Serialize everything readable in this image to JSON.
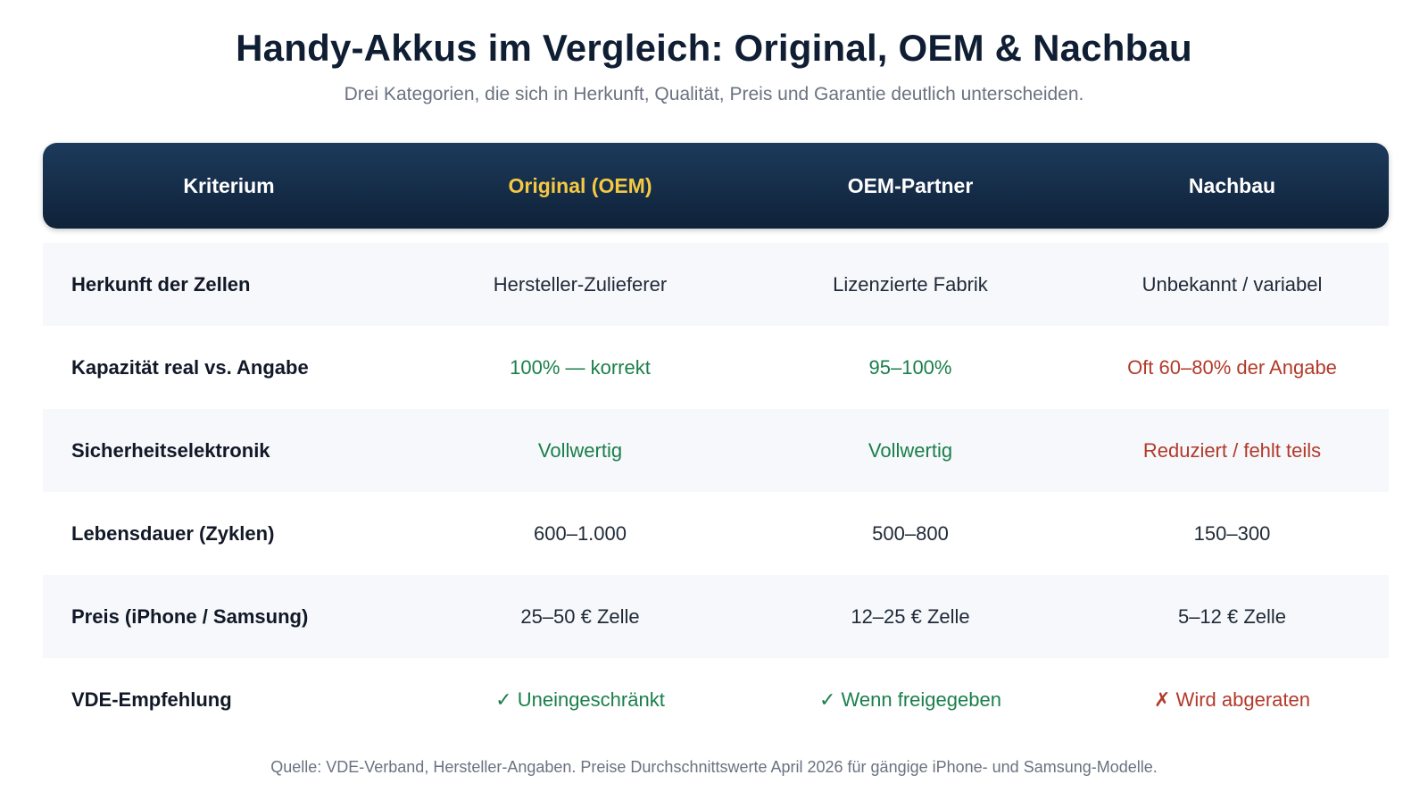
{
  "title": "Handy-Akkus im Vergleich: Original, OEM & Nachbau",
  "subtitle": "Drei Kategorien, die sich in Herkunft, Qualität, Preis und Garantie deutlich unterscheiden.",
  "table": {
    "headers": [
      "Kriterium",
      "Original (OEM)",
      "OEM-Partner",
      "Nachbau"
    ],
    "rows": [
      {
        "criterion": "Herkunft der Zellen",
        "original": "Hersteller-Zulieferer",
        "partner": "Lizenzierte Fabrik",
        "nachbau": "Unbekannt / variabel"
      },
      {
        "criterion": "Kapazität real vs. Angabe",
        "original": "100% — korrekt",
        "partner": "95–100%",
        "nachbau": "Oft 60–80% der Angabe"
      },
      {
        "criterion": "Sicherheitselektronik",
        "original": "Vollwertig",
        "partner": "Vollwertig",
        "nachbau": "Reduziert / fehlt teils"
      },
      {
        "criterion": "Lebensdauer (Zyklen)",
        "original": "600–1.000",
        "partner": "500–800",
        "nachbau": "150–300"
      },
      {
        "criterion": "Preis (iPhone / Samsung)",
        "original": "25–50 € Zelle",
        "partner": "12–25 € Zelle",
        "nachbau": "5–12 € Zelle"
      },
      {
        "criterion": "VDE-Empfehlung",
        "original": "✓ Uneingeschränkt",
        "partner": "✓ Wenn freigegeben",
        "nachbau": "✗ Wird abgeraten"
      }
    ]
  },
  "footer": "Quelle: VDE-Verband, Hersteller-Angaben. Preise Durchschnittswerte April 2026 für gängige iPhone- und Samsung-Modelle.",
  "colors": {
    "header_bg": "#0f2238",
    "highlight": "#f5c842",
    "good": "#1a7f4b",
    "bad": "#b23a2a"
  }
}
